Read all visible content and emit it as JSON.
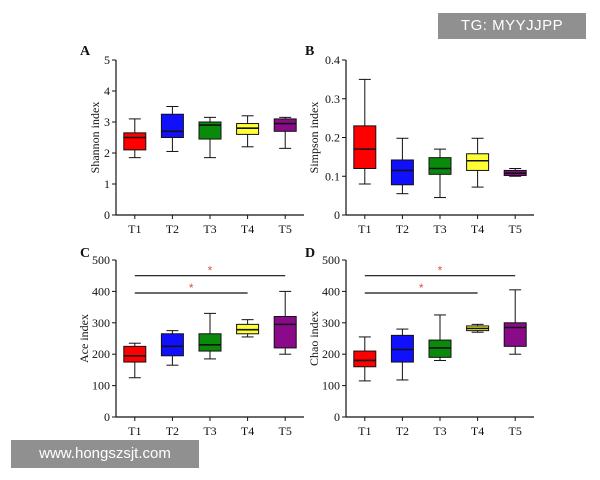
{
  "watermarks": {
    "top": "TG: MYYJJPP",
    "bottom": "www.hongszsjt.com"
  },
  "colors": {
    "T1": "#ff0000",
    "T2": "#1010ff",
    "T3": "#0a8a0a",
    "T4": "#ffff33",
    "T5": "#8a0a8a",
    "significance": "#d9534f"
  },
  "chart_data": [
    {
      "panel": "A",
      "type": "boxplot",
      "ylabel": "Shannon index",
      "ylim": [
        0,
        5
      ],
      "yticks": [
        0,
        1,
        2,
        3,
        4,
        5
      ],
      "categories": [
        "T1",
        "T2",
        "T3",
        "T4",
        "T5"
      ],
      "boxes": [
        {
          "min": 1.85,
          "q1": 2.1,
          "median": 2.5,
          "q3": 2.65,
          "max": 3.1
        },
        {
          "min": 2.05,
          "q1": 2.5,
          "median": 2.7,
          "q3": 3.25,
          "max": 3.5
        },
        {
          "min": 1.85,
          "q1": 2.45,
          "median": 2.9,
          "q3": 3.0,
          "max": 3.15
        },
        {
          "min": 2.2,
          "q1": 2.6,
          "median": 2.8,
          "q3": 2.95,
          "max": 3.2
        },
        {
          "min": 2.15,
          "q1": 2.7,
          "median": 2.95,
          "q3": 3.1,
          "max": 3.15
        }
      ],
      "significance": []
    },
    {
      "panel": "B",
      "type": "boxplot",
      "ylabel": "Simpson index",
      "ylim": [
        0,
        0.4
      ],
      "yticks": [
        0,
        0.1,
        0.2,
        0.3,
        0.4
      ],
      "categories": [
        "T1",
        "T2",
        "T3",
        "T4",
        "T5"
      ],
      "boxes": [
        {
          "min": 0.08,
          "q1": 0.12,
          "median": 0.17,
          "q3": 0.23,
          "max": 0.35
        },
        {
          "min": 0.055,
          "q1": 0.078,
          "median": 0.115,
          "q3": 0.142,
          "max": 0.198
        },
        {
          "min": 0.045,
          "q1": 0.105,
          "median": 0.12,
          "q3": 0.148,
          "max": 0.17
        },
        {
          "min": 0.072,
          "q1": 0.115,
          "median": 0.14,
          "q3": 0.158,
          "max": 0.198
        },
        {
          "min": 0.1,
          "q1": 0.102,
          "median": 0.108,
          "q3": 0.115,
          "max": 0.12
        }
      ],
      "significance": []
    },
    {
      "panel": "C",
      "type": "boxplot",
      "ylabel": "Ace index",
      "ylim": [
        0,
        500
      ],
      "yticks": [
        0,
        100,
        200,
        300,
        400,
        500
      ],
      "categories": [
        "T1",
        "T2",
        "T3",
        "T4",
        "T5"
      ],
      "boxes": [
        {
          "min": 125,
          "q1": 175,
          "median": 195,
          "q3": 225,
          "max": 235
        },
        {
          "min": 165,
          "q1": 195,
          "median": 225,
          "q3": 265,
          "max": 275
        },
        {
          "min": 185,
          "q1": 210,
          "median": 230,
          "q3": 265,
          "max": 330
        },
        {
          "min": 255,
          "q1": 265,
          "median": 278,
          "q3": 295,
          "max": 310
        },
        {
          "min": 200,
          "q1": 220,
          "median": 295,
          "q3": 320,
          "max": 400
        }
      ],
      "significance": [
        {
          "from": "T1",
          "to": "T5",
          "y": 450,
          "label": "*"
        },
        {
          "from": "T1",
          "to": "T4",
          "y": 395,
          "label": "*"
        }
      ]
    },
    {
      "panel": "D",
      "type": "boxplot",
      "ylabel": "Chao index",
      "ylim": [
        0,
        500
      ],
      "yticks": [
        0,
        100,
        200,
        300,
        400,
        500
      ],
      "categories": [
        "T1",
        "T2",
        "T3",
        "T4",
        "T5"
      ],
      "boxes": [
        {
          "min": 115,
          "q1": 160,
          "median": 180,
          "q3": 210,
          "max": 255
        },
        {
          "min": 118,
          "q1": 175,
          "median": 215,
          "q3": 260,
          "max": 280
        },
        {
          "min": 180,
          "q1": 190,
          "median": 220,
          "q3": 245,
          "max": 325
        },
        {
          "min": 270,
          "q1": 275,
          "median": 282,
          "q3": 290,
          "max": 295
        },
        {
          "min": 200,
          "q1": 225,
          "median": 285,
          "q3": 300,
          "max": 405
        }
      ],
      "significance": [
        {
          "from": "T1",
          "to": "T5",
          "y": 450,
          "label": "*"
        },
        {
          "from": "T1",
          "to": "T4",
          "y": 395,
          "label": "*"
        }
      ]
    }
  ]
}
